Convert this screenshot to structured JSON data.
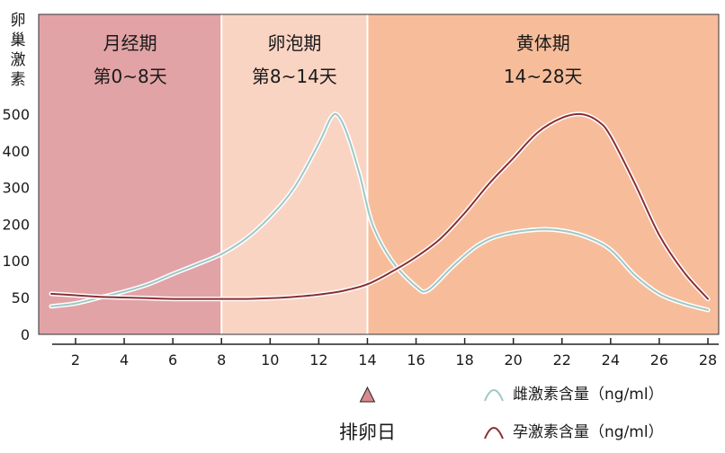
{
  "chart_data": {
    "type": "line",
    "ylabel": "卵巢激素",
    "x_ticks": [
      2,
      4,
      6,
      8,
      10,
      12,
      14,
      16,
      18,
      20,
      22,
      24,
      26,
      28
    ],
    "xlim": [
      0.5,
      28.5
    ],
    "y_ticks": [
      {
        "label": "0",
        "value": 0
      },
      {
        "label": "50",
        "value": 50
      },
      {
        "label": "100",
        "value": 100
      },
      {
        "label": "200",
        "value": 200
      },
      {
        "label": "300",
        "value": 300
      },
      {
        "label": "400",
        "value": 400
      },
      {
        "label": "500",
        "value": 500
      }
    ],
    "ylim": [
      0,
      520
    ],
    "y_scale": "nonlinear (0-50 and 50-100 each take one band, 100-500 linear)",
    "phases": [
      {
        "title": "月经期",
        "range_label": "第0~8天",
        "start": 0.5,
        "end": 8,
        "color": "#e2a3a6"
      },
      {
        "title": "卵泡期",
        "range_label": "第8~14天",
        "start": 8,
        "end": 14,
        "color": "#fad4c3"
      },
      {
        "title": "黄体期",
        "range_label": "14~28天",
        "start": 14,
        "end": 28.5,
        "color": "#f7bd9b"
      }
    ],
    "series": [
      {
        "name": "雌激素含量（ng/ml）",
        "color": "#9fc7c7",
        "x": [
          1,
          2,
          3,
          4,
          5,
          6,
          7,
          8,
          9,
          10,
          11,
          12,
          12.5,
          12.8,
          13.2,
          13.7,
          14.2,
          15,
          16,
          16.5,
          17.5,
          18.5,
          19.5,
          21,
          22,
          23,
          24,
          25,
          26,
          27,
          28
        ],
        "values": [
          38,
          42,
          50,
          58,
          68,
          82,
          95,
          118,
          160,
          220,
          300,
          420,
          490,
          495,
          440,
          330,
          200,
          100,
          65,
          60,
          92,
          140,
          170,
          185,
          182,
          165,
          130,
          80,
          55,
          42,
          33
        ]
      },
      {
        "name": "孕激素含量（ng/ml）",
        "color": "#8a2f35",
        "x": [
          1,
          2,
          3,
          4,
          5,
          6,
          7,
          8,
          9,
          10,
          11,
          12,
          13,
          14,
          15,
          16,
          17,
          18,
          19,
          20,
          21,
          22,
          22.8,
          23.5,
          24,
          25,
          26,
          27,
          28
        ],
        "values": [
          55,
          53,
          51,
          50,
          49,
          48,
          48,
          48,
          48,
          49,
          51,
          54,
          59,
          68,
          85,
          110,
          160,
          230,
          310,
          380,
          450,
          490,
          500,
          480,
          440,
          310,
          170,
          85,
          48
        ]
      }
    ],
    "ovulation_marker": {
      "day": 14,
      "label": "排卵日",
      "color": "#d98a8f"
    }
  }
}
